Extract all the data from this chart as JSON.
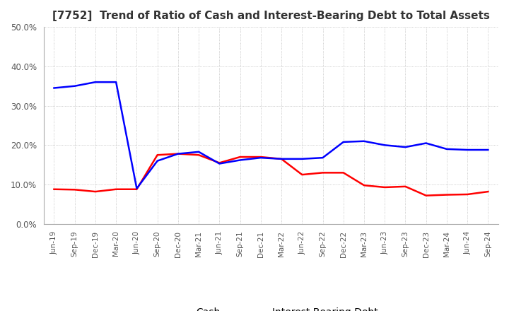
{
  "title": "[7752]  Trend of Ratio of Cash and Interest-Bearing Debt to Total Assets",
  "title_fontsize": 11,
  "ylim": [
    0.0,
    0.5
  ],
  "yticks": [
    0.0,
    0.1,
    0.2,
    0.3,
    0.4,
    0.5
  ],
  "ytick_labels": [
    "0.0%",
    "10.0%",
    "20.0%",
    "30.0%",
    "40.0%",
    "50.0%"
  ],
  "x_labels": [
    "Jun-19",
    "Sep-19",
    "Dec-19",
    "Mar-20",
    "Jun-20",
    "Sep-20",
    "Dec-20",
    "Mar-21",
    "Jun-21",
    "Sep-21",
    "Dec-21",
    "Mar-22",
    "Jun-22",
    "Sep-22",
    "Dec-22",
    "Mar-23",
    "Jun-23",
    "Sep-23",
    "Dec-23",
    "Mar-24",
    "Jun-24",
    "Sep-24"
  ],
  "cash": [
    0.088,
    0.087,
    0.082,
    0.088,
    0.088,
    0.175,
    0.178,
    0.175,
    0.155,
    0.17,
    0.17,
    0.165,
    0.125,
    0.13,
    0.13,
    0.098,
    0.093,
    0.095,
    0.072,
    0.074,
    0.075,
    0.082
  ],
  "interest_bearing_debt": [
    0.345,
    0.35,
    0.36,
    0.36,
    0.09,
    0.16,
    0.178,
    0.183,
    0.153,
    0.162,
    0.168,
    0.165,
    0.165,
    0.168,
    0.208,
    0.21,
    0.2,
    0.195,
    0.205,
    0.19,
    0.188,
    0.188
  ],
  "cash_color": "#ff0000",
  "debt_color": "#0000ff",
  "line_width": 1.8,
  "grid_color": "#aaaaaa",
  "background_color": "#ffffff",
  "legend_labels": [
    "Cash",
    "Interest-Bearing Debt"
  ],
  "legend_fontsize": 10
}
